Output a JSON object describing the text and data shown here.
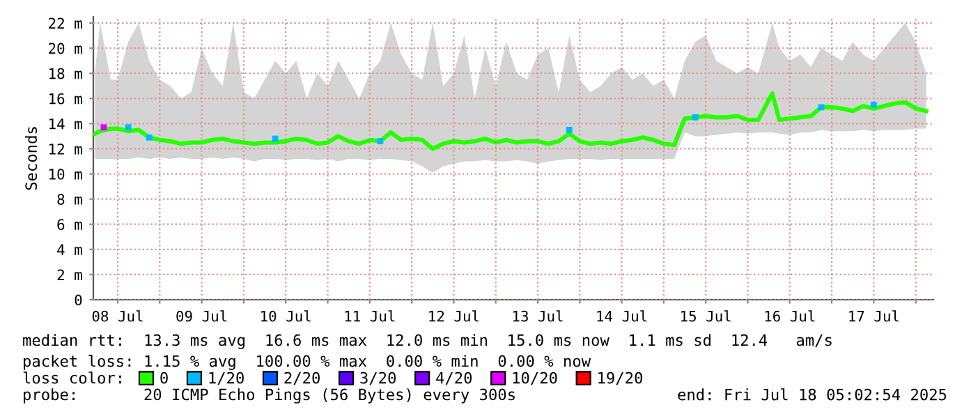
{
  "chart_data": {
    "type": "line",
    "ylabel": "Seconds",
    "legend_title": "loss color:",
    "legend": "bottom",
    "grid": true,
    "marker": "none",
    "line_style": "solid",
    "xlim": [
      "2025-07-08T05:02",
      "2025-07-18T05:02"
    ],
    "xticks": [
      {
        "value": "2025-07-08T12:00",
        "label": "08 Jul"
      },
      {
        "value": "2025-07-09T00:00",
        "label": null
      },
      {
        "value": "2025-07-09T12:00",
        "label": "09 Jul"
      },
      {
        "value": "2025-07-10T00:00",
        "label": null
      },
      {
        "value": "2025-07-10T12:00",
        "label": "10 Jul"
      },
      {
        "value": "2025-07-11T00:00",
        "label": null
      },
      {
        "value": "2025-07-11T12:00",
        "label": "11 Jul"
      },
      {
        "value": "2025-07-12T00:00",
        "label": null
      },
      {
        "value": "2025-07-12T12:00",
        "label": "12 Jul"
      },
      {
        "value": "2025-07-13T00:00",
        "label": null
      },
      {
        "value": "2025-07-13T12:00",
        "label": "13 Jul"
      },
      {
        "value": "2025-07-14T00:00",
        "label": null
      },
      {
        "value": "2025-07-14T12:00",
        "label": "14 Jul"
      },
      {
        "value": "2025-07-15T00:00",
        "label": null
      },
      {
        "value": "2025-07-15T12:00",
        "label": "15 Jul"
      },
      {
        "value": "2025-07-16T00:00",
        "label": null
      },
      {
        "value": "2025-07-16T12:00",
        "label": "16 Jul"
      },
      {
        "value": "2025-07-17T00:00",
        "label": null
      },
      {
        "value": "2025-07-17T12:00",
        "label": "17 Jul"
      },
      {
        "value": "2025-07-18T00:00",
        "label": null
      }
    ],
    "ylim": [
      0,
      22.5
    ],
    "yticks": [
      0,
      {
        "value": 2,
        "label": "2 m"
      },
      {
        "value": 4,
        "label": "4 m"
      },
      {
        "value": 6,
        "label": "6 m"
      },
      {
        "value": 8,
        "label": "8 m"
      },
      {
        "value": 10,
        "label": "10 m"
      },
      {
        "value": 12,
        "label": "12 m"
      },
      {
        "value": 14,
        "label": "14 m"
      },
      {
        "value": 16,
        "label": "16 m"
      },
      {
        "value": 18,
        "label": "18 m"
      },
      {
        "value": 20,
        "label": "20 m"
      },
      {
        "value": 22,
        "label": "22 m"
      }
    ],
    "series": [
      {
        "name": "0",
        "color": "#26ff00",
        "x": [
          "2025-07-08T05:30",
          "2025-07-08T07:00",
          "2025-07-08T10:00",
          "2025-07-08T12:00",
          "2025-07-08T15:00",
          "2025-07-08T18:00",
          "2025-07-08T21:00",
          "2025-07-09T00:00",
          "2025-07-09T03:00",
          "2025-07-09T06:00",
          "2025-07-09T09:00",
          "2025-07-09T12:00",
          "2025-07-09T15:00",
          "2025-07-09T18:00",
          "2025-07-09T21:00",
          "2025-07-10T00:00",
          "2025-07-10T03:00",
          "2025-07-10T06:00",
          "2025-07-10T09:00",
          "2025-07-10T12:00",
          "2025-07-10T15:00",
          "2025-07-10T18:00",
          "2025-07-10T21:00",
          "2025-07-11T00:00",
          "2025-07-11T03:00",
          "2025-07-11T06:00",
          "2025-07-11T09:00",
          "2025-07-11T12:00",
          "2025-07-11T15:00",
          "2025-07-11T18:00",
          "2025-07-11T21:00",
          "2025-07-12T00:00",
          "2025-07-12T03:00",
          "2025-07-12T06:00",
          "2025-07-12T09:00",
          "2025-07-12T12:00",
          "2025-07-12T15:00",
          "2025-07-12T18:00",
          "2025-07-12T21:00",
          "2025-07-13T00:00",
          "2025-07-13T03:00",
          "2025-07-13T06:00",
          "2025-07-13T09:00",
          "2025-07-13T12:00",
          "2025-07-13T15:00",
          "2025-07-13T18:00",
          "2025-07-13T21:00",
          "2025-07-14T00:00",
          "2025-07-14T03:00",
          "2025-07-14T06:00",
          "2025-07-14T09:00",
          "2025-07-14T12:00",
          "2025-07-14T15:00",
          "2025-07-14T18:00",
          "2025-07-14T21:00",
          "2025-07-15T00:00",
          "2025-07-15T03:00",
          "2025-07-15T06:00",
          "2025-07-15T09:00",
          "2025-07-15T12:00",
          "2025-07-15T15:00",
          "2025-07-15T18:00",
          "2025-07-15T21:00",
          "2025-07-16T00:00",
          "2025-07-16T03:00",
          "2025-07-16T07:00",
          "2025-07-16T09:00",
          "2025-07-16T12:00",
          "2025-07-16T15:00",
          "2025-07-16T18:00",
          "2025-07-16T21:00",
          "2025-07-17T00:00",
          "2025-07-17T03:00",
          "2025-07-17T06:00",
          "2025-07-17T09:00",
          "2025-07-17T12:00",
          "2025-07-17T15:00",
          "2025-07-17T18:00",
          "2025-07-17T21:00",
          "2025-07-18T00:00",
          "2025-07-18T03:00"
        ],
        "values": [
          13.2,
          13.4,
          13.6,
          13.6,
          13.4,
          13.5,
          12.9,
          12.7,
          12.6,
          12.4,
          12.5,
          12.5,
          12.7,
          12.8,
          12.6,
          12.5,
          12.4,
          12.5,
          12.5,
          12.6,
          12.8,
          12.7,
          12.4,
          12.5,
          13.0,
          12.6,
          12.4,
          12.7,
          12.6,
          13.3,
          12.7,
          12.8,
          12.7,
          12.0,
          12.4,
          12.6,
          12.5,
          12.6,
          12.8,
          12.5,
          12.7,
          12.5,
          12.6,
          12.6,
          12.4,
          12.6,
          13.2,
          12.6,
          12.4,
          12.5,
          12.4,
          12.6,
          12.7,
          12.9,
          12.7,
          12.4,
          12.3,
          14.4,
          14.5,
          14.6,
          14.5,
          14.5,
          14.6,
          14.3,
          14.3,
          16.4,
          14.3,
          14.4,
          14.5,
          14.6,
          15.3,
          15.3,
          15.2,
          15.0,
          15.4,
          15.2,
          15.4,
          15.6,
          15.7,
          15.2,
          15.0
        ],
        "lower": [
          11.2,
          11.2,
          11.2,
          11.2,
          11.2,
          11.3,
          11.2,
          11.3,
          11.2,
          11.3,
          11.2,
          11.2,
          11.3,
          11.2,
          11.3,
          11.2,
          11.0,
          11.2,
          11.2,
          11.1,
          11.2,
          11.2,
          11.1,
          11.2,
          11.0,
          11.2,
          11.2,
          11.1,
          11.2,
          11.2,
          11.1,
          11.0,
          10.6,
          10.1,
          10.6,
          10.8,
          11.0,
          11.0,
          11.1,
          11.0,
          11.0,
          11.1,
          11.0,
          10.8,
          11.0,
          11.1,
          11.2,
          11.2,
          11.2,
          11.1,
          11.2,
          11.2,
          11.2,
          11.2,
          11.2,
          11.2,
          11.2,
          13.3,
          13.0,
          13.0,
          13.1,
          13.2,
          13.3,
          13.2,
          13.3,
          13.3,
          13.2,
          13.1,
          13.3,
          13.3,
          13.5,
          13.4,
          13.4,
          13.4,
          13.5,
          13.4,
          13.5,
          13.5,
          13.5,
          13.6,
          13.6
        ],
        "upper": [
          18.2,
          22.0,
          17.5,
          17.5,
          20.5,
          22.0,
          19.0,
          17.5,
          17.0,
          16.0,
          16.5,
          20.0,
          18.0,
          17.0,
          22.0,
          16.5,
          16.0,
          17.5,
          19.0,
          18.0,
          19.0,
          16.0,
          18.0,
          17.0,
          19.0,
          17.5,
          16.0,
          18.0,
          19.0,
          22.0,
          19.5,
          18.0,
          17.5,
          22.0,
          17.0,
          18.0,
          21.0,
          16.0,
          20.0,
          17.0,
          20.5,
          18.0,
          17.5,
          19.5,
          20.0,
          16.5,
          21.0,
          17.5,
          16.5,
          17.0,
          18.0,
          18.5,
          17.5,
          18.0,
          17.0,
          17.5,
          16.0,
          19.0,
          20.5,
          21.0,
          19.0,
          18.5,
          18.0,
          18.5,
          18.0,
          22.0,
          20.0,
          19.0,
          19.5,
          18.5,
          20.0,
          19.5,
          19.0,
          20.5,
          19.5,
          19.0,
          20.0,
          21.0,
          22.0,
          20.5,
          18.0
        ]
      },
      {
        "name": "1/20",
        "color": "#00b8ff",
        "type": "scatter",
        "marker": "square",
        "x": [
          "2025-07-08T15:00",
          "2025-07-08T21:00",
          "2025-07-10T09:00",
          "2025-07-11T15:00",
          "2025-07-13T21:00",
          "2025-07-15T09:00",
          "2025-07-16T21:00",
          "2025-07-17T12:00"
        ],
        "values": [
          13.7,
          12.9,
          12.8,
          12.6,
          13.5,
          14.5,
          15.3,
          15.5
        ]
      },
      {
        "name": "2/20",
        "color": "#0059ff",
        "type": "scatter",
        "marker": "square"
      },
      {
        "name": "3/20",
        "color": "#5e00ff",
        "type": "scatter",
        "marker": "square"
      },
      {
        "name": "4/20",
        "color": "#7e00ff",
        "type": "scatter",
        "marker": "square"
      },
      {
        "name": "10/20",
        "color": "#dd00ff",
        "type": "scatter",
        "marker": "square",
        "x": [
          "2025-07-08T08:00"
        ],
        "values": [
          13.7
        ]
      },
      {
        "name": "19/20",
        "color": "#ff0000",
        "type": "scatter",
        "marker": "square"
      }
    ],
    "annotations": [
      "median rtt:  13.3 ms avg  16.6 ms max  12.0 ms min  15.0 ms now  1.1 ms sd  12.4   am/s",
      "packet loss: 1.15 % avg  100.00 % max  0.00 % min  0.00 % now",
      "probe:       20 ICMP Echo Pings (56 Bytes) every 300s",
      "end: Fri Jul 18 05:02:54 2025"
    ]
  }
}
